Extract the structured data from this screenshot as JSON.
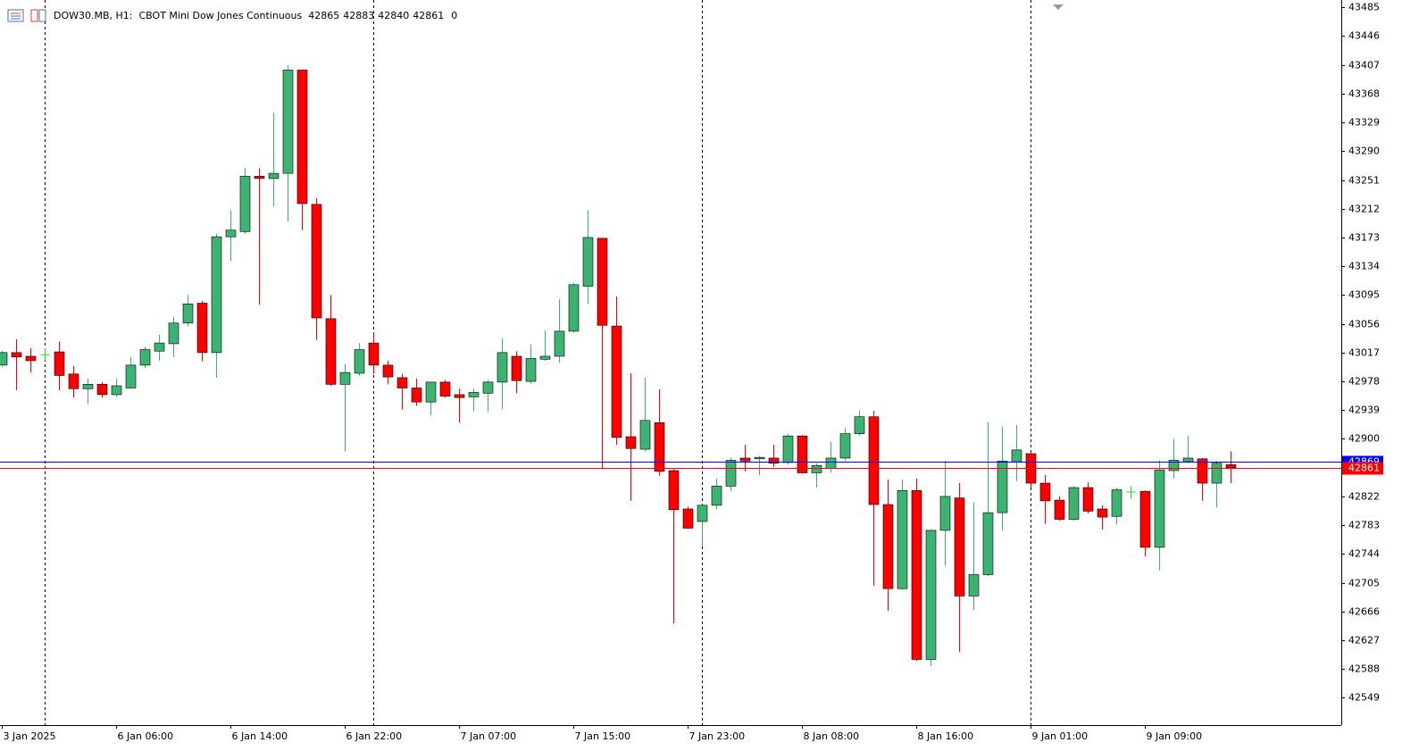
{
  "chart_data": {
    "type": "candlestick",
    "title": "DOW30.MB, H1:  CBOT Mini Dow Jones Continuous",
    "header_ohlc": [
      42865,
      42883,
      42840,
      42861
    ],
    "header_volume": 0,
    "categories": [
      "3 Jan 2025",
      null,
      null,
      null,
      null,
      null,
      null,
      null,
      "6 Jan 06:00",
      null,
      null,
      null,
      null,
      null,
      null,
      null,
      "6 Jan 14:00",
      null,
      null,
      null,
      null,
      null,
      null,
      null,
      "6 Jan 22:00",
      null,
      null,
      null,
      null,
      null,
      null,
      null,
      "7 Jan 07:00",
      null,
      null,
      null,
      null,
      null,
      null,
      null,
      "7 Jan 15:00",
      null,
      null,
      null,
      null,
      null,
      null,
      null,
      "7 Jan 23:00",
      null,
      null,
      null,
      null,
      null,
      null,
      null,
      "8 Jan 08:00",
      null,
      null,
      null,
      null,
      null,
      null,
      null,
      "8 Jan 16:00",
      null,
      null,
      null,
      null,
      null,
      null,
      null,
      "9 Jan 01:00",
      null,
      null,
      null,
      null,
      null,
      null,
      null,
      "9 Jan 09:00",
      null,
      null,
      null,
      null,
      null,
      null
    ],
    "open": [
      43000,
      43017,
      43012,
      43014,
      43018,
      42988,
      42968,
      42974,
      42960,
      42969,
      43000,
      43019,
      43029,
      43057,
      43084,
      43017,
      43174,
      43181,
      43256,
      43253,
      43260,
      43400,
      43218,
      43063,
      42974,
      42989,
      43030,
      43000,
      42983,
      42969,
      42950,
      42977,
      42960,
      42957,
      42962,
      42977,
      43012,
      42978,
      43008,
      43012,
      43046,
      43107,
      43172,
      43053,
      42903,
      42886,
      42922,
      42857,
      42805,
      42788,
      42810,
      42836,
      42874,
      42873,
      42874,
      42868,
      42904,
      42854,
      42860,
      42874,
      42907,
      42930,
      42811,
      42697,
      42830,
      42601,
      42776,
      42820,
      42687,
      42716,
      42800,
      42869,
      42880,
      42840,
      42817,
      42791,
      42834,
      42805,
      42795,
      42828,
      42829,
      42753,
      42857,
      42869,
      42873,
      42840,
      42865
    ],
    "high": [
      43019,
      43035,
      43023,
      43023,
      43032,
      42999,
      42982,
      42977,
      42982,
      43011,
      43025,
      43041,
      43065,
      43095,
      43087,
      43178,
      43210,
      43267,
      43267,
      43342,
      43407,
      43400,
      43226,
      43095,
      43001,
      43030,
      43044,
      43006,
      42988,
      42982,
      42977,
      42980,
      42968,
      42968,
      42980,
      43036,
      43019,
      43028,
      43047,
      43089,
      43111,
      43210,
      43172,
      43093,
      42989,
      42983,
      42967,
      42859,
      42808,
      42811,
      42846,
      42875,
      42892,
      42877,
      42892,
      42907,
      42905,
      42867,
      42896,
      42915,
      42938,
      42938,
      42845,
      42845,
      42846,
      42777,
      42870,
      42840,
      42814,
      42923,
      42917,
      42919,
      42881,
      42851,
      42822,
      42836,
      42841,
      42810,
      42834,
      42836,
      42830,
      42871,
      42900,
      42904,
      42874,
      42870,
      42883
    ],
    "low": [
      42998,
      42966,
      42990,
      43006,
      42966,
      42956,
      42948,
      42956,
      42957,
      42969,
      42996,
      43006,
      43011,
      43053,
      43005,
      42983,
      43141,
      43178,
      43082,
      43215,
      43195,
      43183,
      43034,
      42972,
      42883,
      42986,
      42988,
      42974,
      42940,
      42945,
      42932,
      42956,
      42922,
      42938,
      42937,
      42940,
      42962,
      42975,
      43006,
      43003,
      43044,
      43083,
      42859,
      42892,
      42816,
      42883,
      42850,
      42650,
      42778,
      42754,
      42805,
      42829,
      42856,
      42851,
      42862,
      42865,
      42853,
      42834,
      42854,
      42870,
      42904,
      42701,
      42667,
      42696,
      42599,
      42592,
      42728,
      42611,
      42668,
      42714,
      42776,
      42843,
      42834,
      42785,
      42789,
      42789,
      42799,
      42777,
      42784,
      42819,
      42741,
      42722,
      42846,
      42867,
      42816,
      42807,
      42840
    ],
    "close": [
      43017,
      43011,
      43006,
      43014,
      42986,
      42968,
      42974,
      42960,
      42972,
      43000,
      43021,
      43030,
      43057,
      43083,
      43017,
      43174,
      43183,
      43256,
      43253,
      43260,
      43400,
      43219,
      43064,
      42974,
      42990,
      43021,
      43000,
      42984,
      42969,
      42950,
      42977,
      42958,
      42956,
      42963,
      42977,
      43017,
      42979,
      43009,
      43012,
      43046,
      43109,
      43173,
      43054,
      42902,
      42887,
      42925,
      42856,
      42804,
      42779,
      42810,
      42836,
      42871,
      42870,
      42875,
      42867,
      42904,
      42854,
      42864,
      42874,
      42907,
      42930,
      42811,
      42697,
      42830,
      42601,
      42776,
      42822,
      42687,
      42716,
      42800,
      42870,
      42885,
      42840,
      42816,
      42791,
      42834,
      42802,
      42794,
      42831,
      42828,
      42753,
      42858,
      42871,
      42874,
      42840,
      42867,
      42861
    ],
    "up_color": "#3cb371",
    "down_color": "#ff0000",
    "doji_color": "#22dd22",
    "bid_line": 42869,
    "bid_color": "#0000ff",
    "last_line": 42861,
    "last_color": "#ff0000",
    "ylim": [
      42512,
      43495
    ],
    "yticks": [
      43485,
      43446,
      43407,
      43368,
      43329,
      43290,
      43251,
      43212,
      43173,
      43134,
      43095,
      43056,
      43017,
      42978,
      42939,
      42900,
      42822,
      42783,
      42744,
      42705,
      42666,
      42627,
      42588,
      42549
    ]
  }
}
